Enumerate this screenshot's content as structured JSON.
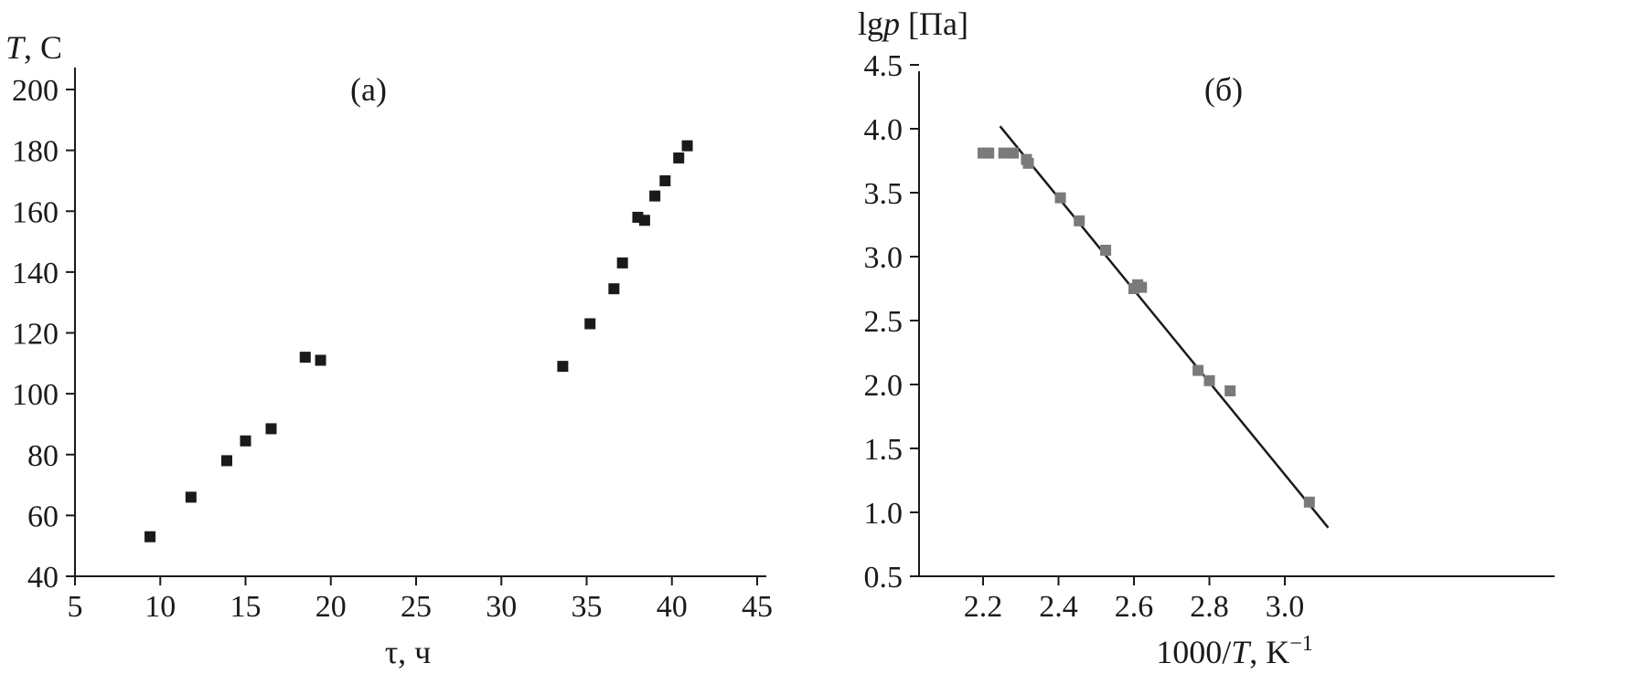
{
  "chart_data": [
    {
      "type": "scatter",
      "panel_label": "(а)",
      "ylabel_var": "T",
      "ylabel_rest": ", С",
      "xlabel": "τ, ч",
      "xlim": [
        5,
        45
      ],
      "ylim": [
        40,
        210
      ],
      "xticks": [
        "5",
        "10",
        "15",
        "20",
        "25",
        "30",
        "35",
        "40",
        "45"
      ],
      "yticks": [
        "40",
        "60",
        "80",
        "100",
        "120",
        "140",
        "160",
        "180",
        "200"
      ],
      "marker_color": "#1a1a1a",
      "grid": false,
      "series": [
        {
          "x": [
            9.4,
            11.8,
            13.9,
            15.0,
            16.5,
            18.5,
            19.4,
            33.6,
            35.2,
            36.6,
            37.1,
            38.0,
            38.4,
            39.0,
            39.6,
            40.4,
            40.9
          ],
          "y": [
            53,
            66,
            78,
            84.5,
            88.5,
            112,
            111,
            109,
            123,
            134.5,
            143,
            158,
            157,
            165,
            170,
            177.5,
            181.5
          ]
        }
      ]
    },
    {
      "type": "scatter",
      "panel_label": "(б)",
      "ylabel_pre": "lg",
      "ylabel_var": "p",
      "ylabel_rest": " [Па]",
      "xlabel_pre": "1000/",
      "xlabel_var": "T",
      "xlabel_rest": ", K",
      "xlabel_sup": "−1",
      "xlim": [
        2.1,
        3.15
      ],
      "ylim": [
        0.5,
        4.5
      ],
      "xticks": [
        "2.2",
        "2.4",
        "2.6",
        "2.8",
        "3.0"
      ],
      "yticks": [
        "0.5",
        "1.0",
        "1.5",
        "2.0",
        "2.5",
        "3.0",
        "3.5",
        "4.0",
        "4.5"
      ],
      "marker_color": "#7a7a7a",
      "line_color": "#1a1a1a",
      "grid": false,
      "series": [
        {
          "x": [
            2.2,
            2.215,
            2.255,
            2.28,
            2.315,
            2.32,
            2.405,
            2.455,
            2.525,
            2.6,
            2.61,
            2.62,
            2.77,
            2.8,
            2.855,
            3.065
          ],
          "y": [
            3.81,
            3.81,
            3.81,
            3.81,
            3.76,
            3.73,
            3.46,
            3.28,
            3.05,
            2.75,
            2.78,
            2.76,
            2.11,
            2.03,
            1.95,
            1.08
          ]
        }
      ],
      "fit_line": {
        "x": [
          2.245,
          3.115
        ],
        "y": [
          4.02,
          0.88
        ]
      }
    }
  ]
}
